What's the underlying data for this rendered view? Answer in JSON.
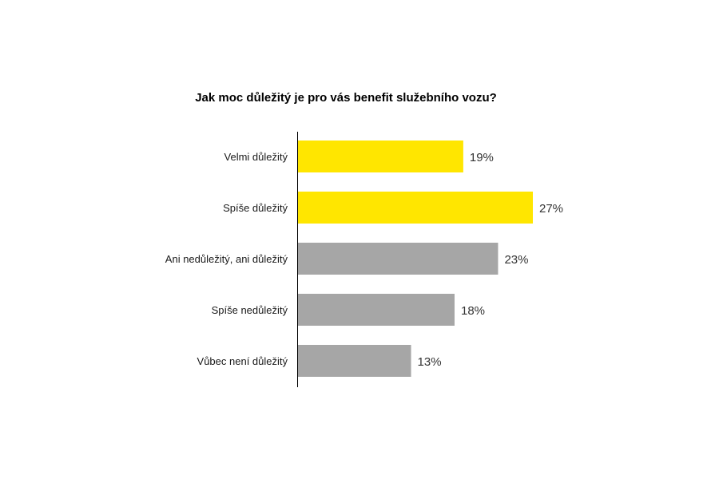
{
  "chart_data": {
    "type": "bar",
    "orientation": "horizontal",
    "title": "Jak moc důležitý je pro vás benefit služebního vozu?",
    "categories": [
      "Velmi důležitý",
      "Spíše důležitý",
      "Ani nedůležitý, ani důležitý",
      "Spíše nedůležitý",
      "Vůbec není důležitý"
    ],
    "values": [
      19,
      27,
      23,
      18,
      13
    ],
    "value_labels": [
      "19%",
      "27%",
      "23%",
      "18%",
      "13%"
    ],
    "bar_colors": [
      "#FFE600",
      "#FFE600",
      "#A6A6A6",
      "#A6A6A6",
      "#A6A6A6"
    ],
    "unit": "%",
    "xlim": [
      0,
      27
    ],
    "xlabel": "",
    "ylabel": "",
    "grid": false,
    "legend": "none"
  }
}
